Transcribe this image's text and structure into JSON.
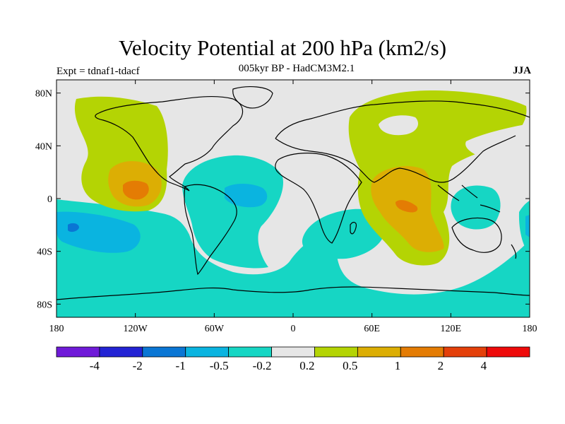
{
  "title": "Velocity Potential at 200 hPa (km2/s)",
  "subtitle": "005kyr BP - HadCM3M2.1",
  "expt_label": "Expt = tdnaf1-tdacf",
  "season": "JJA",
  "lat_ticks": [
    "80N",
    "40N",
    "0",
    "40S",
    "80S"
  ],
  "lon_ticks": [
    "180",
    "120W",
    "60W",
    "0",
    "60E",
    "120E",
    "180"
  ],
  "colorbar": {
    "colors": [
      "#6f1ad8",
      "#2323d4",
      "#0a76d4",
      "#0ab4e0",
      "#16d6c4",
      "#e6e6e6",
      "#b4d404",
      "#dcae04",
      "#e47c04",
      "#e4400a",
      "#ee0a0a"
    ],
    "labels": [
      "-4",
      "-2",
      "-1",
      "-0.5",
      "-0.2",
      "0.2",
      "0.5",
      "1",
      "2",
      "4"
    ]
  },
  "colors": {
    "neutral": "#e6e6e6",
    "pos1": "#b4d404",
    "pos2": "#dcae04",
    "pos3": "#e47c04",
    "neg1": "#16d6c4",
    "neg2": "#0ab4e0",
    "neg3": "#0a76d4"
  }
}
